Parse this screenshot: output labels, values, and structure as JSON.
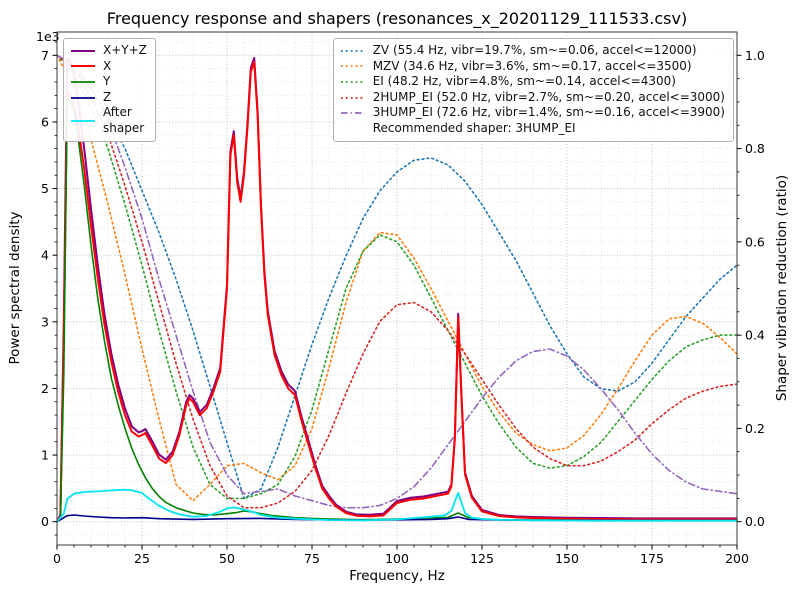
{
  "chart_data": {
    "type": "line",
    "title": "Frequency response and shapers (resonances_x_20201129_111533.csv)",
    "xlabel": "Frequency, Hz",
    "ylabel_left": "Power spectral density",
    "ylabel_right": "Shaper vibration reduction (ratio)",
    "y_offset_label": "1e3",
    "xlim": [
      0,
      200
    ],
    "ylim_left": [
      0,
      7000
    ],
    "ylim_right": [
      0,
      1
    ],
    "grid": "both",
    "x_ticks": [
      0,
      25,
      50,
      75,
      100,
      125,
      150,
      175,
      200
    ],
    "x_minor_step": 5,
    "y_left_ticks": {
      "values": [
        0,
        1000,
        2000,
        3000,
        4000,
        5000,
        6000,
        7000
      ],
      "labels": [
        "0",
        "1",
        "2",
        "3",
        "4",
        "5",
        "6",
        "7"
      ]
    },
    "y_left_minor_step": 200,
    "y_right_ticks": {
      "values": [
        0,
        0.2,
        0.4,
        0.6,
        0.8,
        1.0
      ],
      "labels": [
        "0.0",
        "0.2",
        "0.4",
        "0.6",
        "0.8",
        "1.0"
      ]
    },
    "y_right_minor_step": 0.05,
    "legend_left_position": "upper left",
    "legend_right_position": "upper right",
    "recommendation": "Recommended shaper: 3HUMP_EI",
    "psd_series": [
      {
        "name": "xyz-sum",
        "label": "X+Y+Z",
        "color": "#800080",
        "style": "solid",
        "width": 2,
        "x": [
          0,
          1,
          2,
          3,
          4,
          5,
          6,
          8,
          10,
          12,
          14,
          16,
          18,
          20,
          22,
          24,
          25,
          26,
          28,
          30,
          32,
          34,
          36,
          38,
          39,
          40,
          42,
          44,
          46,
          48,
          50,
          51,
          52,
          53,
          54,
          55,
          56,
          57,
          58,
          59,
          60,
          61,
          62,
          64,
          66,
          68,
          70,
          72,
          74,
          76,
          78,
          80,
          82,
          85,
          88,
          92,
          96,
          100,
          104,
          108,
          112,
          115,
          116,
          117,
          118,
          119,
          120,
          122,
          125,
          130,
          135,
          140,
          150,
          160,
          170,
          180,
          190,
          200
        ],
        "y": [
          0,
          100,
          3000,
          6950,
          6900,
          6700,
          6400,
          5600,
          4700,
          3850,
          3100,
          2520,
          2060,
          1700,
          1430,
          1340,
          1360,
          1390,
          1210,
          1010,
          930,
          1050,
          1350,
          1800,
          1900,
          1850,
          1650,
          1750,
          2000,
          2310,
          3560,
          5560,
          5860,
          5160,
          4860,
          5260,
          5960,
          6810,
          6960,
          6160,
          4760,
          3760,
          3160,
          2560,
          2260,
          2060,
          1960,
          1560,
          1210,
          850,
          540,
          390,
          260,
          150,
          110,
          105,
          120,
          310,
          360,
          380,
          420,
          450,
          560,
          1260,
          3120,
          1860,
          740,
          390,
          175,
          100,
          80,
          70,
          60,
          55,
          50,
          50,
          50,
          50
        ]
      },
      {
        "name": "x",
        "label": "X",
        "color": "#ff0000",
        "style": "solid",
        "width": 2,
        "x": [
          0,
          1,
          2,
          3,
          4,
          5,
          6,
          8,
          10,
          12,
          14,
          16,
          18,
          20,
          22,
          24,
          25,
          26,
          28,
          30,
          32,
          34,
          36,
          38,
          39,
          40,
          42,
          44,
          46,
          48,
          50,
          51,
          52,
          53,
          54,
          55,
          56,
          57,
          58,
          59,
          60,
          61,
          62,
          64,
          66,
          68,
          70,
          72,
          74,
          76,
          78,
          80,
          82,
          85,
          88,
          92,
          96,
          100,
          104,
          108,
          112,
          115,
          116,
          117,
          118,
          119,
          120,
          122,
          125,
          130,
          135,
          140,
          150,
          160,
          170,
          180,
          190,
          200
        ],
        "y": [
          0,
          80,
          2800,
          6450,
          6400,
          6250,
          6000,
          5300,
          4450,
          3650,
          2950,
          2400,
          1950,
          1600,
          1350,
          1280,
          1300,
          1330,
          1150,
          950,
          880,
          1000,
          1300,
          1750,
          1850,
          1800,
          1600,
          1700,
          1950,
          2250,
          3500,
          5500,
          5800,
          5100,
          4800,
          5200,
          5900,
          6750,
          6900,
          6100,
          4700,
          3700,
          3100,
          2500,
          2200,
          2000,
          1900,
          1500,
          1150,
          800,
          500,
          350,
          230,
          130,
          90,
          80,
          95,
          280,
          330,
          350,
          390,
          420,
          530,
          1230,
          3060,
          1820,
          710,
          360,
          155,
          85,
          65,
          55,
          45,
          40,
          35,
          35,
          35,
          35
        ]
      },
      {
        "name": "y",
        "label": "Y",
        "color": "#008000",
        "style": "solid",
        "width": 1.6,
        "x": [
          0,
          1,
          2,
          3,
          4,
          5,
          6,
          8,
          10,
          12,
          14,
          16,
          18,
          20,
          22,
          24,
          26,
          28,
          30,
          32,
          35,
          38,
          40,
          43,
          46,
          50,
          53,
          55,
          57,
          60,
          63,
          66,
          70,
          75,
          80,
          90,
          100,
          110,
          115,
          118,
          121,
          125,
          130,
          140,
          160,
          180,
          200
        ],
        "y": [
          0,
          60,
          2200,
          6350,
          6300,
          6150,
          5850,
          5050,
          4150,
          3350,
          2700,
          2150,
          1750,
          1400,
          1100,
          860,
          660,
          500,
          380,
          290,
          210,
          160,
          130,
          110,
          100,
          120,
          140,
          160,
          150,
          120,
          95,
          80,
          60,
          50,
          40,
          30,
          40,
          55,
          65,
          130,
          60,
          40,
          30,
          25,
          20,
          20,
          20
        ]
      },
      {
        "name": "z",
        "label": "Z",
        "color": "#00008b",
        "style": "solid",
        "width": 1.6,
        "x": [
          0,
          2,
          3,
          5,
          8,
          12,
          16,
          20,
          25,
          30,
          40,
          50,
          60,
          70,
          80,
          90,
          100,
          110,
          115,
          118,
          121,
          130,
          150,
          175,
          200
        ],
        "y": [
          0,
          60,
          90,
          100,
          85,
          70,
          60,
          55,
          60,
          45,
          35,
          45,
          50,
          35,
          28,
          25,
          28,
          35,
          45,
          70,
          35,
          25,
          22,
          20,
          20
        ]
      },
      {
        "name": "after-shaper",
        "label": "After\nshaper",
        "color": "#00e5ee",
        "style": "solid",
        "width": 1.8,
        "x": [
          0,
          2,
          3,
          5,
          8,
          12,
          16,
          20,
          22,
          25,
          27,
          30,
          33,
          36,
          40,
          44,
          48,
          50,
          52,
          54,
          56,
          58,
          60,
          65,
          70,
          75,
          80,
          90,
          100,
          105,
          110,
          114,
          116,
          117,
          118,
          119,
          120,
          122,
          125,
          130,
          140,
          160,
          180,
          200
        ],
        "y": [
          0,
          120,
          340,
          420,
          445,
          455,
          470,
          480,
          473,
          430,
          350,
          240,
          160,
          110,
          75,
          85,
          150,
          200,
          215,
          195,
          170,
          140,
          100,
          60,
          45,
          35,
          25,
          20,
          35,
          55,
          75,
          95,
          160,
          300,
          430,
          280,
          130,
          60,
          40,
          30,
          20,
          15,
          15,
          15
        ]
      }
    ],
    "shaper_x": [
      0,
      5,
      10,
      15,
      20,
      25,
      30,
      35,
      40,
      45,
      50,
      55,
      60,
      65,
      70,
      75,
      80,
      85,
      90,
      95,
      100,
      105,
      110,
      115,
      120,
      125,
      130,
      135,
      140,
      145,
      150,
      155,
      160,
      165,
      170,
      175,
      180,
      185,
      190,
      195,
      200
    ],
    "shaper_series": [
      {
        "name": "ZV",
        "label": "ZV (55.4 Hz, vibr=19.7%, sm~=0.06, accel<=12000)",
        "color": "#1f77b4",
        "style": "dotted",
        "width": 1.6,
        "y": [
          1.0,
          0.97,
          0.93,
          0.87,
          0.8,
          0.71,
          0.62,
          0.52,
          0.41,
          0.29,
          0.17,
          0.05,
          0.07,
          0.16,
          0.27,
          0.38,
          0.48,
          0.57,
          0.65,
          0.71,
          0.75,
          0.775,
          0.78,
          0.765,
          0.73,
          0.68,
          0.62,
          0.56,
          0.49,
          0.42,
          0.36,
          0.31,
          0.285,
          0.28,
          0.3,
          0.34,
          0.39,
          0.44,
          0.48,
          0.52,
          0.55
        ]
      },
      {
        "name": "MZV",
        "label": "MZV (34.6 Hz, vibr=3.6%, sm~=0.17, accel<=3500)",
        "color": "#ff7f0e",
        "style": "dotted",
        "width": 1.6,
        "y": [
          1.0,
          0.93,
          0.82,
          0.68,
          0.53,
          0.37,
          0.22,
          0.08,
          0.045,
          0.08,
          0.12,
          0.125,
          0.105,
          0.09,
          0.12,
          0.2,
          0.33,
          0.47,
          0.58,
          0.62,
          0.615,
          0.565,
          0.5,
          0.43,
          0.36,
          0.29,
          0.235,
          0.19,
          0.165,
          0.152,
          0.158,
          0.185,
          0.23,
          0.285,
          0.345,
          0.4,
          0.435,
          0.44,
          0.425,
          0.395,
          0.36
        ]
      },
      {
        "name": "EI",
        "label": "EI (48.2 Hz, vibr=4.8%, sm~=0.14, accel<=4300)",
        "color": "#2ca02c",
        "style": "dotted",
        "width": 1.6,
        "y": [
          1.0,
          0.96,
          0.89,
          0.8,
          0.68,
          0.55,
          0.41,
          0.28,
          0.16,
          0.08,
          0.05,
          0.05,
          0.06,
          0.08,
          0.14,
          0.24,
          0.37,
          0.5,
          0.58,
          0.615,
          0.6,
          0.55,
          0.48,
          0.41,
          0.34,
          0.27,
          0.21,
          0.16,
          0.125,
          0.115,
          0.12,
          0.14,
          0.17,
          0.215,
          0.26,
          0.305,
          0.345,
          0.375,
          0.39,
          0.4,
          0.4
        ]
      },
      {
        "name": "2HUMP_EI",
        "label": "2HUMP_EI (52.0 Hz, vibr=2.7%, sm~=0.20, accel<=3000)",
        "color": "#d62728",
        "style": "dotted",
        "width": 1.6,
        "y": [
          1.0,
          0.97,
          0.91,
          0.83,
          0.72,
          0.6,
          0.47,
          0.34,
          0.22,
          0.12,
          0.055,
          0.03,
          0.03,
          0.04,
          0.065,
          0.11,
          0.185,
          0.275,
          0.36,
          0.43,
          0.465,
          0.47,
          0.45,
          0.41,
          0.36,
          0.305,
          0.25,
          0.2,
          0.16,
          0.135,
          0.12,
          0.12,
          0.13,
          0.15,
          0.175,
          0.21,
          0.24,
          0.265,
          0.28,
          0.29,
          0.295
        ]
      },
      {
        "name": "3HUMP_EI",
        "label": "3HUMP_EI (72.6 Hz, vibr=1.4%, sm~=0.16, accel<=3900)",
        "color": "#9467bd",
        "style": "dashdot",
        "width": 1.6,
        "y": [
          1.0,
          0.98,
          0.93,
          0.86,
          0.76,
          0.65,
          0.52,
          0.4,
          0.28,
          0.17,
          0.1,
          0.06,
          0.065,
          0.07,
          0.055,
          0.045,
          0.035,
          0.03,
          0.03,
          0.035,
          0.05,
          0.075,
          0.115,
          0.165,
          0.215,
          0.265,
          0.31,
          0.345,
          0.365,
          0.37,
          0.355,
          0.325,
          0.285,
          0.24,
          0.19,
          0.145,
          0.11,
          0.085,
          0.07,
          0.065,
          0.06
        ]
      }
    ]
  }
}
